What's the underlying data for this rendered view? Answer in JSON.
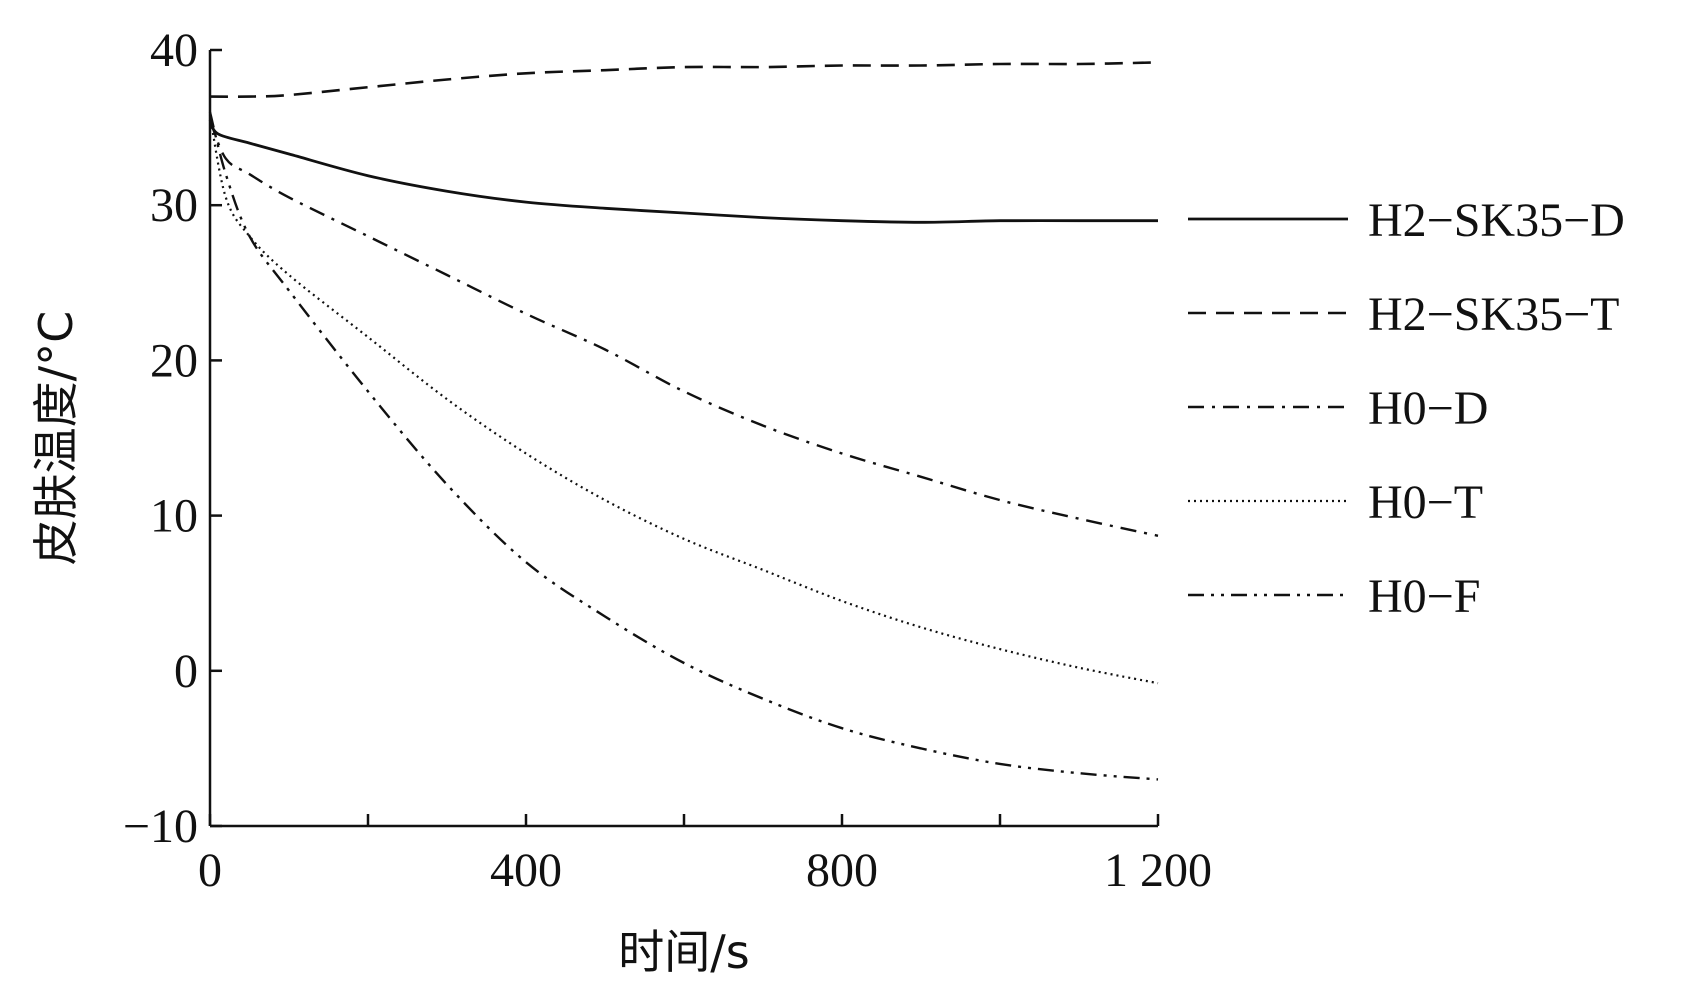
{
  "chart_data": {
    "type": "line",
    "xlabel": "时间/s",
    "ylabel": "皮肤温度/°C",
    "xlim": [
      0,
      1200
    ],
    "ylim": [
      -10,
      40
    ],
    "xticks": [
      0,
      200,
      400,
      600,
      800,
      1000,
      1200
    ],
    "xtick_labels": [
      "0",
      "",
      "400",
      "",
      "800",
      "",
      "1 200"
    ],
    "yticks": [
      -10,
      0,
      10,
      20,
      30,
      40
    ],
    "ytick_labels": [
      "−10",
      "0",
      "10",
      "20",
      "30",
      "40"
    ],
    "grid": false,
    "legend_position": "right",
    "series": [
      {
        "name": "H2−SK35−D",
        "style": "solid",
        "x": [
          0,
          10,
          50,
          100,
          200,
          300,
          400,
          500,
          600,
          700,
          800,
          900,
          1000,
          1100,
          1200
        ],
        "y": [
          35.5,
          34.6,
          34.0,
          33.3,
          31.9,
          30.9,
          30.2,
          29.8,
          29.5,
          29.2,
          29.0,
          28.9,
          29.0,
          29.0,
          29.0
        ]
      },
      {
        "name": "H2−SK35−T",
        "style": "dashed",
        "x": [
          0,
          50,
          100,
          200,
          300,
          400,
          500,
          600,
          700,
          800,
          900,
          1000,
          1100,
          1200
        ],
        "y": [
          37.0,
          37.0,
          37.1,
          37.6,
          38.1,
          38.5,
          38.7,
          38.9,
          38.9,
          39.0,
          39.0,
          39.1,
          39.1,
          39.2
        ]
      },
      {
        "name": "H0−D",
        "style": "dash-dot",
        "x": [
          0,
          20,
          50,
          100,
          200,
          300,
          400,
          500,
          600,
          700,
          800,
          900,
          1000,
          1100,
          1200
        ],
        "y": [
          35.5,
          33.0,
          32.0,
          30.5,
          28.0,
          25.5,
          23.0,
          20.7,
          18.0,
          15.8,
          14.0,
          12.5,
          11.0,
          9.8,
          8.7
        ]
      },
      {
        "name": "H0−T",
        "style": "dotted",
        "x": [
          0,
          20,
          50,
          100,
          200,
          300,
          400,
          500,
          600,
          700,
          800,
          900,
          1000,
          1100,
          1200
        ],
        "y": [
          35.8,
          30.5,
          28.0,
          25.5,
          21.5,
          17.5,
          14.0,
          11.0,
          8.5,
          6.5,
          4.5,
          2.8,
          1.4,
          0.2,
          -0.8
        ]
      },
      {
        "name": "H0−F",
        "style": "dash-dot-dot",
        "x": [
          0,
          20,
          50,
          100,
          200,
          300,
          400,
          500,
          600,
          700,
          800,
          900,
          1000,
          1100,
          1200
        ],
        "y": [
          36.0,
          32.0,
          28.0,
          24.5,
          18.0,
          12.0,
          7.0,
          3.5,
          0.5,
          -1.8,
          -3.7,
          -5.0,
          -6.0,
          -6.6,
          -7.0
        ]
      }
    ]
  }
}
